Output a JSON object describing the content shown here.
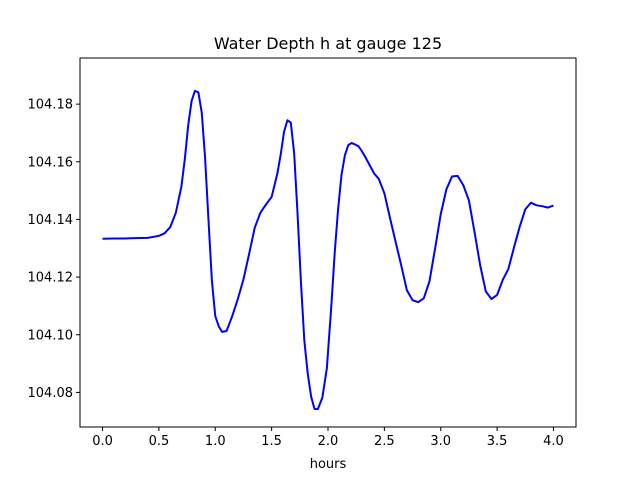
{
  "chart_data": {
    "type": "line",
    "title": "Water Depth h at gauge 125",
    "xlabel": "hours",
    "ylabel": "",
    "xlim": [
      -0.2,
      4.2
    ],
    "ylim": [
      104.068,
      104.196
    ],
    "xticks": [
      0.0,
      0.5,
      1.0,
      1.5,
      2.0,
      2.5,
      3.0,
      3.5,
      4.0
    ],
    "xtick_labels": [
      "0.0",
      "0.5",
      "1.0",
      "1.5",
      "2.0",
      "2.5",
      "3.0",
      "3.5",
      "4.0"
    ],
    "yticks": [
      104.08,
      104.1,
      104.12,
      104.14,
      104.16,
      104.18
    ],
    "ytick_labels": [
      "104.08",
      "104.10",
      "104.12",
      "104.14",
      "104.16",
      "104.18"
    ],
    "grid": false,
    "series": [
      {
        "color": "#0000ff",
        "x": [
          0.0,
          0.1,
          0.2,
          0.3,
          0.4,
          0.5,
          0.55,
          0.6,
          0.65,
          0.7,
          0.73,
          0.76,
          0.79,
          0.82,
          0.85,
          0.88,
          0.91,
          0.94,
          0.97,
          1.0,
          1.03,
          1.06,
          1.1,
          1.15,
          1.2,
          1.25,
          1.3,
          1.35,
          1.4,
          1.45,
          1.5,
          1.55,
          1.58,
          1.61,
          1.64,
          1.67,
          1.7,
          1.73,
          1.76,
          1.79,
          1.82,
          1.85,
          1.88,
          1.91,
          1.95,
          1.99,
          2.03,
          2.06,
          2.09,
          2.12,
          2.15,
          2.18,
          2.21,
          2.24,
          2.27,
          2.3,
          2.33,
          2.37,
          2.41,
          2.45,
          2.5,
          2.55,
          2.6,
          2.65,
          2.7,
          2.75,
          2.8,
          2.85,
          2.9,
          2.95,
          3.0,
          3.05,
          3.1,
          3.15,
          3.2,
          3.25,
          3.3,
          3.35,
          3.4,
          3.45,
          3.5,
          3.55,
          3.6,
          3.65,
          3.7,
          3.75,
          3.8,
          3.85,
          3.9,
          3.95,
          4.0
        ],
        "y": [
          104.1333,
          104.1334,
          104.1334,
          104.1335,
          104.1336,
          104.1343,
          104.1352,
          104.1373,
          104.1423,
          104.1515,
          104.161,
          104.1727,
          104.1811,
          104.1846,
          104.1841,
          104.1771,
          104.1612,
          104.1396,
          104.1188,
          104.1065,
          104.103,
          104.101,
          104.1013,
          104.1064,
          104.1124,
          104.1192,
          104.128,
          104.1371,
          104.1423,
          104.1452,
          104.1478,
          104.1558,
          104.1624,
          104.1704,
          104.1744,
          104.1736,
          104.1629,
          104.1419,
          104.1182,
          104.098,
          104.0866,
          104.0786,
          104.0743,
          104.0742,
          104.0782,
          104.0884,
          104.1103,
          104.1287,
          104.1438,
          104.1555,
          104.1623,
          104.1658,
          104.1665,
          104.166,
          104.1654,
          104.1637,
          104.1617,
          104.1588,
          104.1559,
          104.1541,
          104.1491,
          104.1405,
          104.1322,
          104.124,
          104.1154,
          104.112,
          104.1113,
          104.1127,
          104.1185,
          104.1299,
          104.1418,
          104.1504,
          104.1549,
          104.1551,
          104.1519,
          104.1466,
          104.1356,
          104.1241,
          104.115,
          104.1124,
          104.1138,
          104.119,
          104.1228,
          104.1303,
          104.1374,
          104.1435,
          104.1458,
          104.1449,
          104.1446,
          104.1441,
          104.1448
        ]
      }
    ]
  }
}
